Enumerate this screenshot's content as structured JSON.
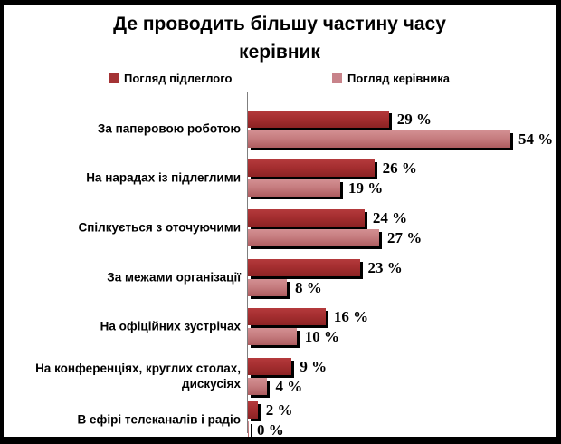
{
  "chart": {
    "title_line1": "Де проводить більшу частину часу",
    "title_line2": "керівник",
    "value_suffix": " %"
  },
  "chart_data": {
    "type": "bar",
    "orientation": "horizontal",
    "title": "Де проводить більшу частину часу керівник",
    "categories": [
      "За паперовою роботою",
      "На нарадах із підлеглими",
      "Спілкується з оточуючими",
      "За межами організації",
      "На офіційних зустрічах",
      "На конференціях, круглих столах, дискусіях",
      "В ефірі телеканалів і радіо"
    ],
    "series": [
      {
        "name": "Погляд підлеглого",
        "values": [
          29,
          26,
          24,
          23,
          16,
          9,
          2
        ],
        "color": "#a43335"
      },
      {
        "name": "Погляд керівника",
        "values": [
          54,
          19,
          27,
          8,
          10,
          4,
          0
        ],
        "color": "#c8838a"
      }
    ],
    "value_labels": true,
    "xlim": [
      0,
      60
    ],
    "grid": false,
    "legend_position": "top"
  }
}
